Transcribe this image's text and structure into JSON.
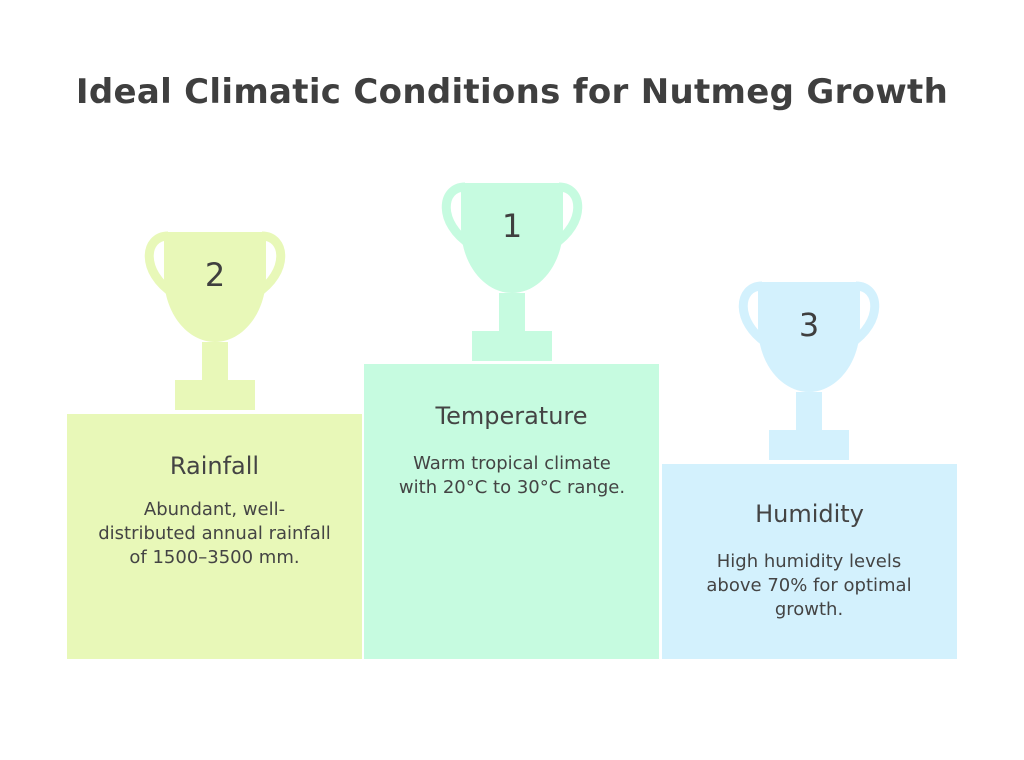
{
  "title": "Ideal Climatic Conditions for Nutmeg Growth",
  "podiums": [
    {
      "rank": "2",
      "name": "Rainfall",
      "description": "Abundant, well-distributed annual rainfall of 1500–3500 mm.",
      "color": "#e8f8b8",
      "trophy_color": "#e8f8b8",
      "icon": "trophy-icon"
    },
    {
      "rank": "1",
      "name": "Temperature",
      "description": "Warm tropical climate with 20°C to 30°C range.",
      "color": "#c6fbe0",
      "trophy_color": "#c6fbe0",
      "icon": "trophy-icon"
    },
    {
      "rank": "3",
      "name": "Humidity",
      "description": "High humidity levels above 70% for optimal growth.",
      "color": "#d3f1fd",
      "trophy_color": "#d3f1fd",
      "icon": "trophy-icon"
    }
  ]
}
